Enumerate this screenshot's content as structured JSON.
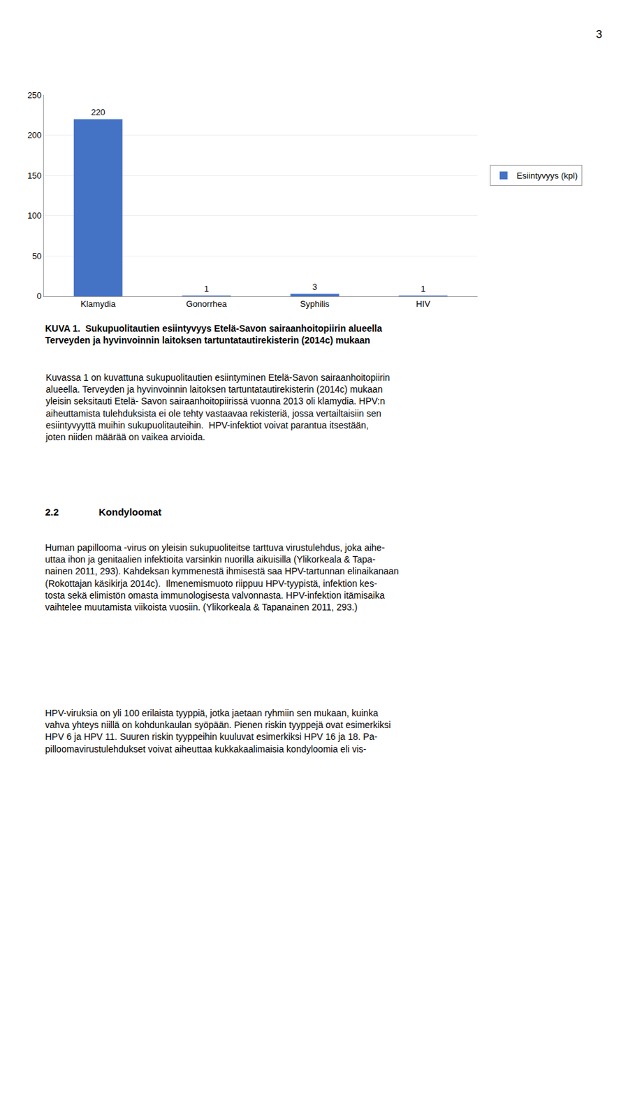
{
  "page_number": "3",
  "chart_data": {
    "type": "bar",
    "title": "KUVA 1.  Sukupuolitautien esiintyvyys Etelä-Savon sairaanhoitopiirin alueella\nTerveyden ja hyvinvoinnin laitoksen tartuntatautirekisterin (2014c) mukaan",
    "categories": [
      "Klamydia",
      "Gonorrhea",
      "Syphilis",
      "HIV"
    ],
    "series": [
      {
        "name": "Esiintyvyys (kpl)",
        "color": "#4472C4",
        "values": [
          220,
          1,
          3,
          1
        ]
      }
    ],
    "ylim": [
      0,
      250
    ],
    "yticks": [
      0,
      50,
      100,
      150,
      200,
      250
    ],
    "grid": true,
    "legend": "right",
    "data_labels": true
  },
  "section_heading": [
    "2.2",
    "Kondyloomat"
  ],
  "paragraphs": [
    "Kuvassa 1 on kuvattuna sukupuolitautien esiintyminen Etelä-Savon sairaanhoitopiirin\nalueella. Terveyden ja hyvinvoinnin laitoksen tartuntatautirekisterin (2014c) mukaan\nyleisin seksitauti Etelä- Savon sairaanhoitopiirissä vuonna 2013 oli klamydia. HPV:n\naiheuttamista tulehduksista ei ole tehty vastaavaa rekisteriä, jossa vertailtaisiin sen\nesiintyvyyttä muihin sukupuolitauteihin.  HPV-infektiot voivat parantua itsestään,\njoten niiden määrää on vaikea arvioida.",
    "Human papillooma -virus on yleisin sukupuoliteitse tarttuva virustulehdus, joka aihe-\nuttaa ihon ja genitaalien infektioita varsinkin nuorilla aikuisilla (Ylikorkeala & Tapa-\nnainen 2011, 293). Kahdeksan kymmenestä ihmisestä saa HPV-tartunnan elinaikanaan\n(Rokottajan käsikirja 2014c).  Ilmenemismuoto riippuu HPV-tyypistä, infektion kes-\ntosta sekä elimistön omasta immunologisesta valvonnasta. HPV-infektion itämisaika\nvaihtelee muutamista viikoista vuosiin. (Ylikorkeala & Tapanainen 2011, 293.)",
    "HPV-viruksia on yli 100 erilaista tyyppiä, jotka jaetaan ryhmiin sen mukaan, kuinka\nvahva yhteys niillä on kohdunkaulan syöpään. Pienen riskin tyyppejä ovat esimerkiksi\nHPV 6 ja HPV 11. Suuren riskin tyyppeihin kuuluvat esimerkiksi HPV 16 ja 18. Pa-\npilloomavirustulehdukset voivat aiheuttaa kukkakaalimaisia kondyloomia eli vis-"
  ]
}
